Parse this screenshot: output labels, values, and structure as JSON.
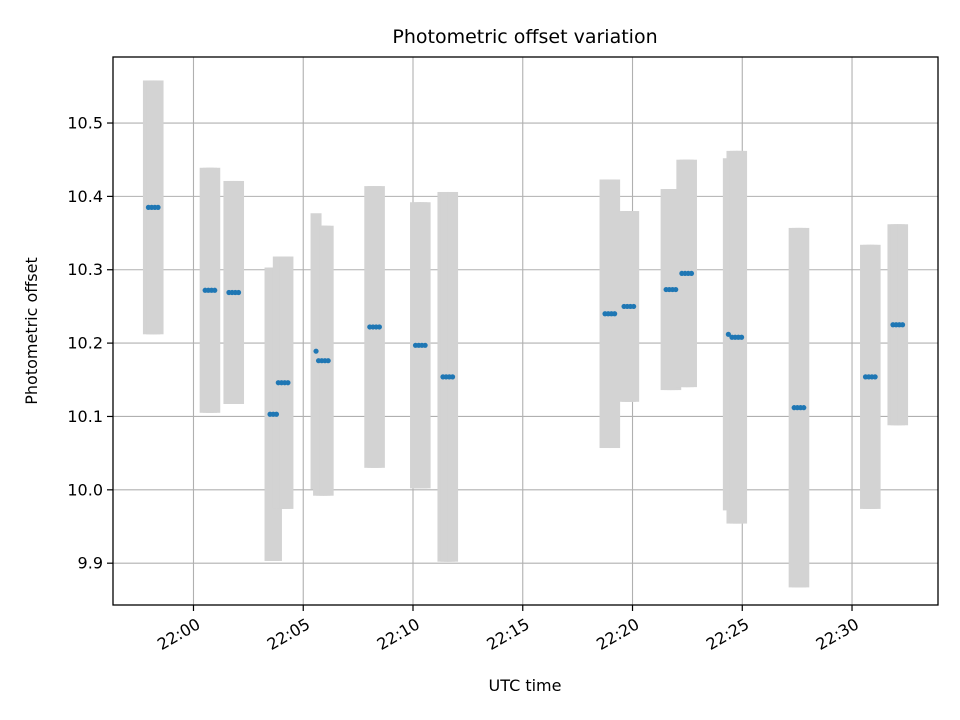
{
  "chart_data": {
    "type": "scatter",
    "title": "Photometric offset variation",
    "xlabel": "UTC time",
    "ylabel": "Photometric offset",
    "x_ticks": [
      "22:00",
      "22:05",
      "22:10",
      "22:15",
      "22:20",
      "22:25",
      "22:30"
    ],
    "y_ticks": [
      "9.9",
      "10.0",
      "10.1",
      "10.2",
      "10.3",
      "10.4",
      "10.5"
    ],
    "xlim": [
      "21:56:20",
      "22:33:55"
    ],
    "ylim": [
      9.843,
      10.59
    ],
    "grid": true,
    "point_color": "#1f77b4",
    "errorbar_color": "#d3d3d3",
    "groups": [
      {
        "t": "21:58:10",
        "value": 10.385,
        "error": 0.173,
        "points": 4
      },
      {
        "t": "22:00:45",
        "value": 10.272,
        "error": 0.167,
        "points": 4
      },
      {
        "t": "22:01:50",
        "value": 10.269,
        "error": 0.152,
        "points": 4
      },
      {
        "t": "22:03:38",
        "value": 10.103,
        "error": 0.2,
        "points": 3
      },
      {
        "t": "22:04:05",
        "value": 10.146,
        "error": 0.172,
        "points": 4
      },
      {
        "t": "22:05:35",
        "value": 10.189,
        "error": 0.188,
        "points": 1
      },
      {
        "t": "22:05:55",
        "value": 10.176,
        "error": 0.184,
        "points": 4
      },
      {
        "t": "22:08:15",
        "value": 10.222,
        "error": 0.192,
        "points": 4
      },
      {
        "t": "22:10:20",
        "value": 10.197,
        "error": 0.195,
        "points": 4
      },
      {
        "t": "22:11:35",
        "value": 10.154,
        "error": 0.252,
        "points": 4
      },
      {
        "t": "22:18:58",
        "value": 10.24,
        "error": 0.183,
        "points": 4
      },
      {
        "t": "22:19:50",
        "value": 10.25,
        "error": 0.13,
        "points": 4
      },
      {
        "t": "22:21:45",
        "value": 10.273,
        "error": 0.137,
        "points": 4
      },
      {
        "t": "22:22:28",
        "value": 10.295,
        "error": 0.155,
        "points": 4
      },
      {
        "t": "22:24:22",
        "value": 10.212,
        "error": 0.24,
        "points": 1
      },
      {
        "t": "22:24:45",
        "value": 10.208,
        "error": 0.254,
        "points": 4
      },
      {
        "t": "22:27:35",
        "value": 10.112,
        "error": 0.245,
        "points": 4
      },
      {
        "t": "22:30:50",
        "value": 10.154,
        "error": 0.18,
        "points": 4
      },
      {
        "t": "22:32:05",
        "value": 10.225,
        "error": 0.137,
        "points": 4
      }
    ]
  }
}
